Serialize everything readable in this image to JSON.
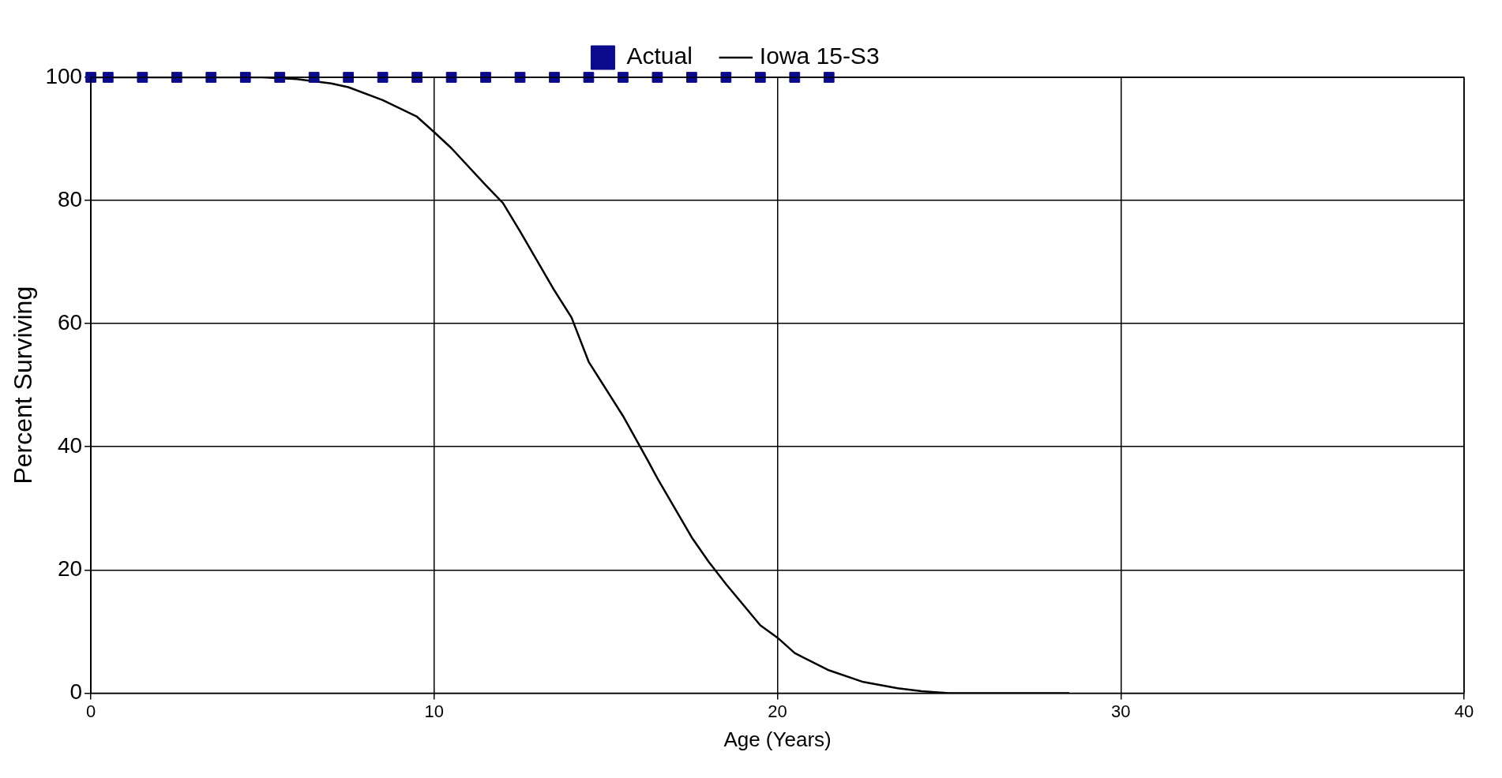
{
  "chart_data": {
    "type": "scatter",
    "xlabel": "Age (Years)",
    "ylabel": "Percent Surviving",
    "xlim": [
      0,
      40
    ],
    "xticks": [
      0,
      10,
      20,
      30,
      40
    ],
    "ylim": [
      0,
      100
    ],
    "yticks": [
      0,
      20,
      40,
      60,
      80,
      100
    ],
    "grid": true,
    "legend": "top",
    "series": [
      {
        "name": "Actual",
        "type": "scatter",
        "marker": "square",
        "color": "#0a0a8c",
        "x": [
          0,
          0.5,
          1.5,
          2.5,
          3.5,
          4.5,
          5.5,
          6.5,
          7.5,
          8.5,
          9.5,
          10.5,
          11.5,
          12.5,
          13.5,
          14.5,
          15.5,
          16.5,
          17.5,
          18.5,
          19.5,
          20.5,
          21.5
        ],
        "values": [
          100,
          100,
          100,
          100,
          100,
          100,
          100,
          100,
          100,
          100,
          100,
          100,
          100,
          100,
          100,
          100,
          100,
          100,
          100,
          100,
          100,
          100,
          100
        ]
      },
      {
        "name": "Iowa 15-S3",
        "type": "line",
        "marker": "none",
        "line_style": "solid",
        "color": "#000000",
        "x": [
          0,
          5,
          6,
          7,
          7.5,
          8.5,
          9.5,
          10,
          10.5,
          11.5,
          12,
          12.5,
          13.5,
          14,
          14.5,
          15.5,
          16.2,
          16.5,
          17.5,
          18,
          18.5,
          19.5,
          20,
          20.5,
          21.5,
          22.5,
          23.5,
          24.2,
          25,
          28.5
        ],
        "values": [
          100,
          100,
          99.7,
          99,
          98.4,
          96.3,
          93.6,
          91.1,
          88.5,
          82.5,
          79.6,
          75,
          65.4,
          61,
          53.8,
          45,
          38,
          34.9,
          25.3,
          21.3,
          17.7,
          11,
          9,
          6.5,
          3.7,
          1.8,
          0.8,
          0.3,
          0,
          0
        ]
      }
    ]
  }
}
